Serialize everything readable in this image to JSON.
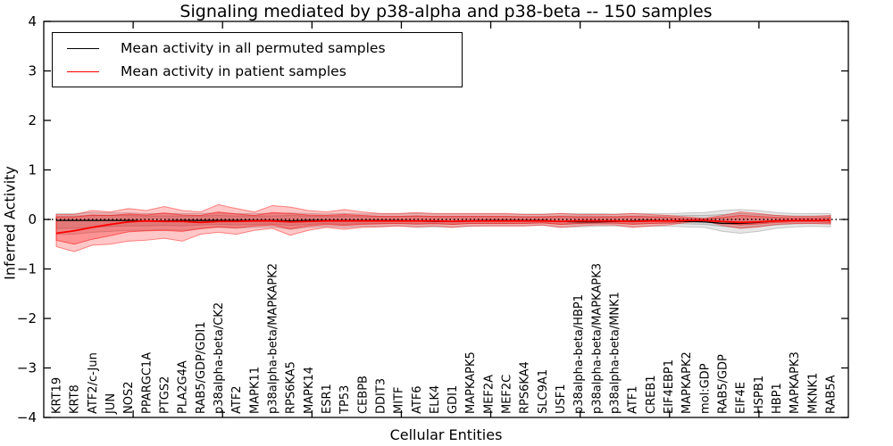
{
  "chart_data": {
    "type": "line",
    "title": "Signaling mediated by p38-alpha and p38-beta -- 150 samples",
    "xlabel": "Cellular Entities",
    "ylabel": "Inferred Activity",
    "ylim": [
      -4,
      4
    ],
    "ytick_values": [
      4,
      3,
      2,
      1,
      0,
      -1,
      -2,
      -3,
      -4
    ],
    "yticks": [
      "4",
      "3",
      "2",
      "1",
      "0",
      "−1",
      "−2",
      "−3",
      "−4"
    ],
    "grid": false,
    "legend_position": "upper left",
    "zero_line": {
      "style": "dotted",
      "color": "#000000",
      "value": 0
    },
    "categories": [
      "KRT19",
      "KRT8",
      "ATF2/c-Jun",
      "JUN",
      "NOS2",
      "PPARGC1A",
      "PTGS2",
      "PLA2G4A",
      "RAB5/GDP/GDI1",
      "p38alpha-beta/CK2",
      "ATF2",
      "MAPK11",
      "p38alpha-beta/MAPKAPK2",
      "RPS6KA5",
      "MAPK14",
      "ESR1",
      "TP53",
      "CEBPB",
      "DDIT3",
      "MITF",
      "ATF6",
      "ELK4",
      "GDI1",
      "MAPKAPK5",
      "MEF2A",
      "MEF2C",
      "RPS6KA4",
      "SLC9A1",
      "USF1",
      "p38alpha-beta/HBP1",
      "p38alpha-beta/MAPKAPK3",
      "p38alpha-beta/MNK1",
      "ATF1",
      "CREB1",
      "EIF4EBP1",
      "MAPKAPK2",
      "mol:GDP",
      "RAB5/GDP",
      "EIF4E",
      "HSPB1",
      "HBP1",
      "MAPKAPK3",
      "MKNK1",
      "RAB5A"
    ],
    "series": [
      {
        "name": "Mean activity in all permuted samples",
        "color": "#000000",
        "values": [
          -0.02,
          -0.02,
          -0.02,
          -0.02,
          -0.02,
          -0.03,
          -0.03,
          -0.02,
          -0.02,
          -0.02,
          -0.02,
          -0.02,
          -0.02,
          -0.03,
          -0.02,
          -0.02,
          -0.02,
          -0.02,
          -0.02,
          -0.02,
          -0.03,
          -0.04,
          -0.04,
          -0.03,
          -0.02,
          -0.02,
          -0.02,
          -0.02,
          -0.04,
          -0.05,
          -0.05,
          -0.04,
          -0.03,
          -0.02,
          -0.03,
          -0.04,
          -0.05,
          -0.08,
          -0.08,
          -0.06,
          -0.03,
          -0.02,
          -0.02,
          -0.02
        ]
      },
      {
        "name": "Mean activity in patient samples",
        "color": "#ff0000",
        "values": [
          -0.28,
          -0.23,
          -0.16,
          -0.1,
          -0.05,
          -0.03,
          -0.04,
          -0.04,
          -0.06,
          -0.04,
          -0.04,
          -0.03,
          -0.03,
          -0.05,
          -0.04,
          -0.03,
          -0.03,
          -0.03,
          -0.03,
          -0.03,
          -0.03,
          -0.03,
          -0.04,
          -0.03,
          -0.03,
          -0.03,
          -0.03,
          -0.03,
          -0.04,
          -0.03,
          -0.03,
          -0.03,
          -0.04,
          -0.03,
          -0.03,
          -0.02,
          -0.02,
          -0.04,
          -0.06,
          -0.05,
          -0.03,
          -0.02,
          -0.02,
          -0.02
        ]
      }
    ],
    "bands": [
      {
        "name": "permuted-range-outer",
        "color": "#777777",
        "opacity": 0.18,
        "upper": [
          0.12,
          0.12,
          0.14,
          0.13,
          0.13,
          0.12,
          0.12,
          0.12,
          0.12,
          0.13,
          0.12,
          0.12,
          0.12,
          0.13,
          0.12,
          0.11,
          0.12,
          0.11,
          0.11,
          0.11,
          0.12,
          0.11,
          0.11,
          0.11,
          0.11,
          0.11,
          0.11,
          0.11,
          0.12,
          0.12,
          0.12,
          0.11,
          0.12,
          0.12,
          0.12,
          0.13,
          0.14,
          0.18,
          0.2,
          0.18,
          0.14,
          0.12,
          0.12,
          0.12
        ],
        "lower": [
          -0.3,
          -0.3,
          -0.26,
          -0.24,
          -0.22,
          -0.22,
          -0.2,
          -0.22,
          -0.18,
          -0.16,
          -0.18,
          -0.16,
          -0.15,
          -0.2,
          -0.16,
          -0.14,
          -0.16,
          -0.14,
          -0.14,
          -0.13,
          -0.16,
          -0.15,
          -0.16,
          -0.14,
          -0.13,
          -0.13,
          -0.13,
          -0.12,
          -0.16,
          -0.15,
          -0.14,
          -0.13,
          -0.15,
          -0.14,
          -0.14,
          -0.15,
          -0.16,
          -0.24,
          -0.28,
          -0.24,
          -0.18,
          -0.15,
          -0.14,
          -0.15
        ]
      },
      {
        "name": "permuted-range-inner",
        "color": "#777777",
        "opacity": 0.2,
        "upper": [
          0.07,
          0.07,
          0.08,
          0.08,
          0.08,
          0.07,
          0.07,
          0.07,
          0.07,
          0.08,
          0.07,
          0.07,
          0.07,
          0.08,
          0.07,
          0.06,
          0.07,
          0.06,
          0.06,
          0.06,
          0.07,
          0.06,
          0.06,
          0.06,
          0.06,
          0.06,
          0.06,
          0.06,
          0.07,
          0.07,
          0.07,
          0.06,
          0.07,
          0.07,
          0.07,
          0.08,
          0.08,
          0.1,
          0.12,
          0.1,
          0.08,
          0.07,
          0.07,
          0.07
        ],
        "lower": [
          -0.18,
          -0.18,
          -0.16,
          -0.14,
          -0.13,
          -0.13,
          -0.12,
          -0.13,
          -0.11,
          -0.1,
          -0.11,
          -0.1,
          -0.09,
          -0.12,
          -0.1,
          -0.08,
          -0.1,
          -0.08,
          -0.08,
          -0.08,
          -0.1,
          -0.09,
          -0.1,
          -0.08,
          -0.08,
          -0.08,
          -0.08,
          -0.07,
          -0.1,
          -0.09,
          -0.08,
          -0.08,
          -0.09,
          -0.08,
          -0.08,
          -0.09,
          -0.1,
          -0.14,
          -0.17,
          -0.14,
          -0.11,
          -0.09,
          -0.08,
          -0.09
        ]
      },
      {
        "name": "patient-range-outer",
        "color": "#ff0000",
        "opacity": 0.22,
        "upper": [
          0.1,
          0.1,
          0.18,
          0.15,
          0.22,
          0.18,
          0.26,
          0.18,
          0.15,
          0.3,
          0.22,
          0.15,
          0.28,
          0.25,
          0.18,
          0.15,
          0.2,
          0.15,
          0.12,
          0.12,
          0.14,
          0.12,
          0.12,
          0.12,
          0.12,
          0.12,
          0.1,
          0.1,
          0.12,
          0.1,
          0.1,
          0.1,
          0.12,
          0.1,
          0.08,
          0.05,
          0.02,
          0.08,
          0.15,
          0.12,
          0.08,
          0.06,
          0.06,
          0.08
        ],
        "lower": [
          -0.55,
          -0.65,
          -0.52,
          -0.5,
          -0.44,
          -0.42,
          -0.38,
          -0.44,
          -0.3,
          -0.26,
          -0.3,
          -0.22,
          -0.18,
          -0.32,
          -0.22,
          -0.16,
          -0.2,
          -0.16,
          -0.15,
          -0.13,
          -0.15,
          -0.13,
          -0.16,
          -0.13,
          -0.13,
          -0.13,
          -0.13,
          -0.11,
          -0.16,
          -0.13,
          -0.11,
          -0.11,
          -0.16,
          -0.13,
          -0.11,
          -0.06,
          -0.03,
          -0.12,
          -0.18,
          -0.15,
          -0.1,
          -0.08,
          -0.08,
          -0.09
        ]
      },
      {
        "name": "patient-range-inner",
        "color": "#ff0000",
        "opacity": 0.26,
        "upper": [
          0.05,
          0.05,
          0.09,
          0.08,
          0.11,
          0.09,
          0.13,
          0.09,
          0.08,
          0.15,
          0.11,
          0.08,
          0.14,
          0.12,
          0.09,
          0.08,
          0.1,
          0.08,
          0.06,
          0.06,
          0.07,
          0.06,
          0.06,
          0.06,
          0.06,
          0.06,
          0.05,
          0.05,
          0.06,
          0.05,
          0.05,
          0.05,
          0.06,
          0.05,
          0.04,
          0.02,
          0.01,
          0.04,
          0.08,
          0.06,
          0.04,
          0.03,
          0.03,
          0.04
        ],
        "lower": [
          -0.42,
          -0.5,
          -0.4,
          -0.33,
          -0.25,
          -0.23,
          -0.22,
          -0.24,
          -0.19,
          -0.15,
          -0.17,
          -0.13,
          -0.11,
          -0.19,
          -0.13,
          -0.1,
          -0.12,
          -0.1,
          -0.09,
          -0.08,
          -0.09,
          -0.08,
          -0.1,
          -0.08,
          -0.08,
          -0.08,
          -0.08,
          -0.07,
          -0.1,
          -0.08,
          -0.07,
          -0.07,
          -0.1,
          -0.08,
          -0.07,
          -0.04,
          -0.02,
          -0.08,
          -0.11,
          -0.09,
          -0.06,
          -0.05,
          -0.05,
          -0.06
        ]
      }
    ]
  }
}
